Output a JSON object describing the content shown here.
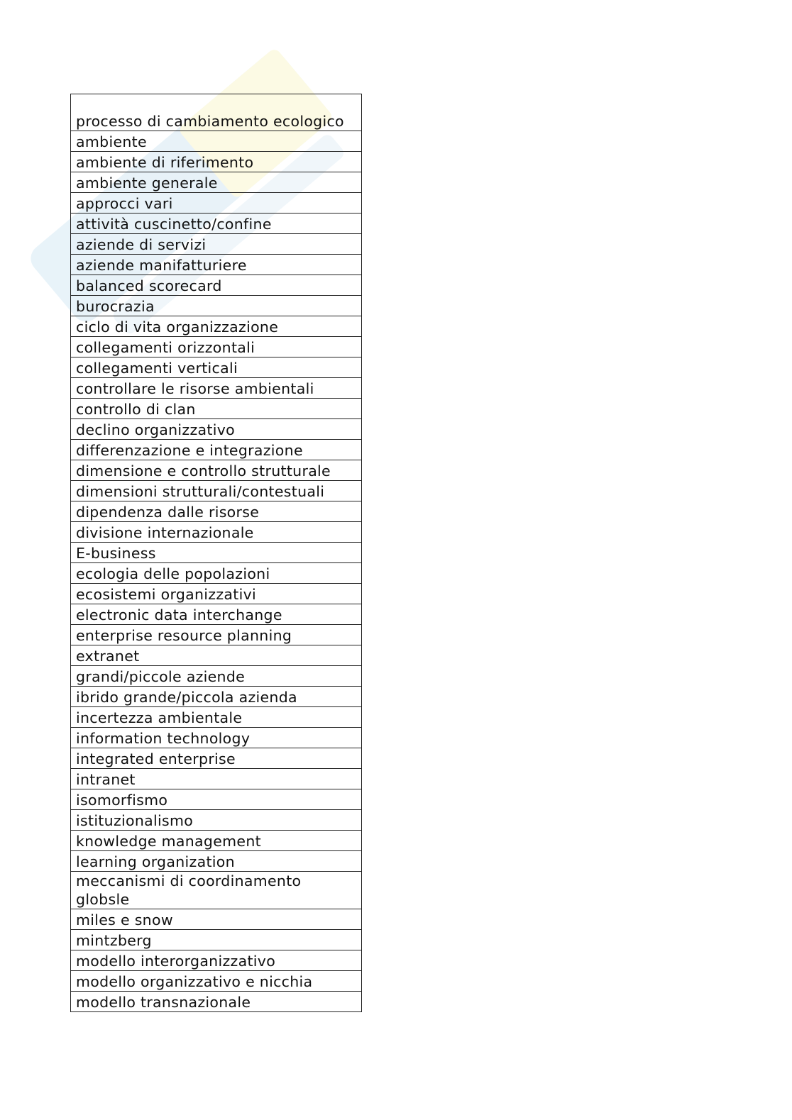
{
  "watermark": {
    "colors": [
      "#d6e9f4",
      "#fbf6cf"
    ]
  },
  "terms": [
    "processo di cambiamento ecologico",
    "ambiente",
    "ambiente di riferimento",
    "ambiente generale",
    "approcci vari",
    "attività cuscinetto/confine",
    "aziende di servizi",
    "aziende manifatturiere",
    "balanced scorecard",
    "burocrazia",
    "ciclo di vita organizzazione",
    "collegamenti orizzontali",
    "collegamenti verticali",
    "controllare le risorse ambientali",
    "controllo di clan",
    "declino organizzativo",
    "differenzazione e integrazione",
    "dimensione e controllo strutturale",
    "dimensioni strutturali/contestuali",
    "dipendenza dalle risorse",
    "divisione internazionale",
    "E-business",
    "ecologia delle popolazioni",
    "ecosistemi organizzativi",
    "electronic data interchange",
    "enterprise resource planning",
    "extranet",
    "grandi/piccole aziende",
    "ibrido grande/piccola azienda",
    "incertezza ambientale",
    "information technology",
    "integrated enterprise",
    "intranet",
    "isomorfismo",
    "istituzionalismo",
    "knowledge management",
    "learning organization",
    "meccanismi di coordinamento globsle",
    "miles e snow",
    "mintzberg",
    "modello interorganizzativo",
    "modello organizzativo e nicchia",
    "modello transnazionale"
  ]
}
